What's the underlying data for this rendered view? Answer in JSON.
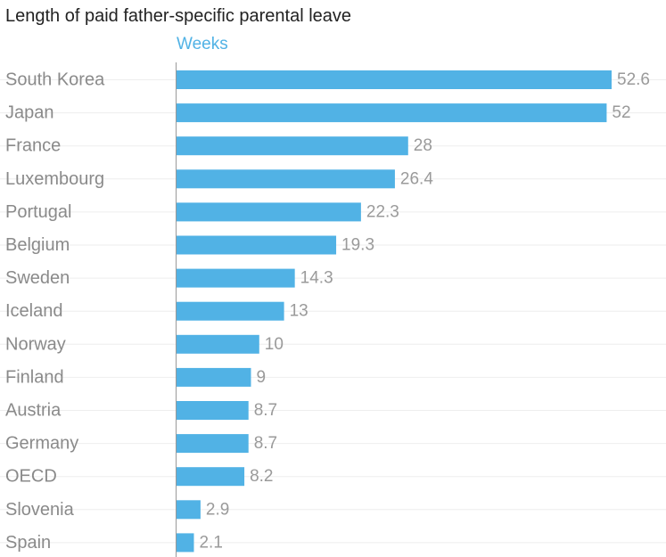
{
  "chart_data": {
    "type": "bar",
    "orientation": "horizontal",
    "title": "Length of paid father-specific parental leave",
    "unit_label": "Weeks",
    "categories": [
      "South Korea",
      "Japan",
      "France",
      "Luxembourg",
      "Portugal",
      "Belgium",
      "Sweden",
      "Iceland",
      "Norway",
      "Finland",
      "Austria",
      "Germany",
      "OECD",
      "Slovenia",
      "Spain"
    ],
    "values": [
      52.6,
      52,
      28,
      26.4,
      22.3,
      19.3,
      14.3,
      13,
      10,
      9,
      8.7,
      8.7,
      8.2,
      2.9,
      2.1
    ],
    "value_labels": [
      "52.6",
      "52",
      "28",
      "26.4",
      "22.3",
      "19.3",
      "14.3",
      "13",
      "10",
      "9",
      "8.7",
      "8.7",
      "8.2",
      "2.9",
      "2.1"
    ],
    "xlim": [
      0,
      52.6
    ],
    "grid": "horizontal row lines",
    "colors": {
      "bar": "#51b2e5",
      "unit_label": "#51b2e5",
      "title": "#222222",
      "category_label": "#8a8a8a",
      "value_label": "#9a9a9a",
      "gridline": "#eeeeee",
      "axis": "#9a9a9a"
    }
  }
}
